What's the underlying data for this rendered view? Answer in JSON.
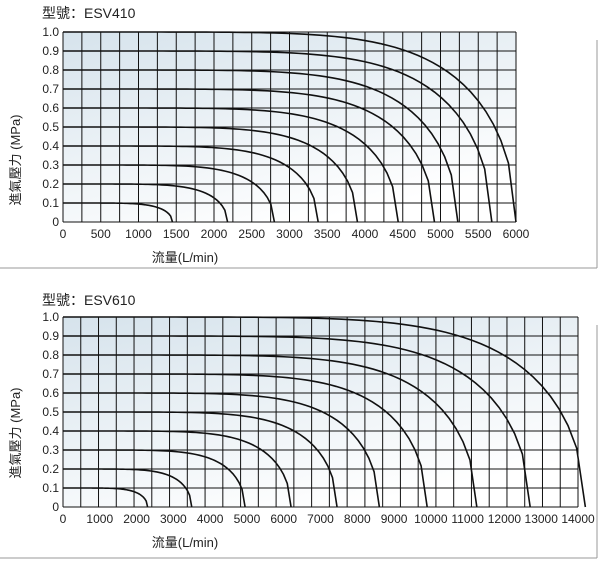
{
  "chart_data": [
    {
      "type": "line",
      "title": "型號：ESV410",
      "xlabel": "流量(L/min)",
      "ylabel": "進氣壓力 (MPa)",
      "xlim": [
        0,
        6000
      ],
      "ylim": [
        0,
        1.0
      ],
      "x_ticks": [
        "0",
        "500",
        "1000",
        "1500",
        "2000",
        "2500",
        "3000",
        "3500",
        "4000",
        "4500",
        "5000",
        "5500",
        "6000"
      ],
      "y_ticks": [
        "0",
        "0.1",
        "0.2",
        "0.3",
        "0.4",
        "0.5",
        "0.6",
        "0.7",
        "0.8",
        "0.9",
        "1.0"
      ],
      "grid": true,
      "series": [
        {
          "pressure": 0.1,
          "max_flow": 1450
        },
        {
          "pressure": 0.2,
          "max_flow": 2180
        },
        {
          "pressure": 0.3,
          "max_flow": 2800
        },
        {
          "pressure": 0.4,
          "max_flow": 3380
        },
        {
          "pressure": 0.5,
          "max_flow": 3900
        },
        {
          "pressure": 0.6,
          "max_flow": 4440
        },
        {
          "pressure": 0.7,
          "max_flow": 4920
        },
        {
          "pressure": 0.8,
          "max_flow": 5230
        },
        {
          "pressure": 0.9,
          "max_flow": 5680
        },
        {
          "pressure": 1.0,
          "max_flow": 6000
        }
      ]
    },
    {
      "type": "line",
      "title": "型號：ESV610",
      "xlabel": "流量(L/min)",
      "ylabel": "進氣壓力 (MPa)",
      "xlim": [
        0,
        14000
      ],
      "ylim": [
        0,
        1.0
      ],
      "x_ticks": [
        "0",
        "1000",
        "2000",
        "3000",
        "4000",
        "5000",
        "6000",
        "7000",
        "8000",
        "9000",
        "10000",
        "11000",
        "12000",
        "13000",
        "14000"
      ],
      "y_ticks": [
        "0",
        "0.1",
        "0.2",
        "0.3",
        "0.4",
        "0.5",
        "0.6",
        "0.7",
        "0.8",
        "0.9",
        "1.0"
      ],
      "grid": true,
      "series": [
        {
          "pressure": 0.1,
          "max_flow": 2300
        },
        {
          "pressure": 0.2,
          "max_flow": 3500
        },
        {
          "pressure": 0.3,
          "max_flow": 4950
        },
        {
          "pressure": 0.4,
          "max_flow": 6200
        },
        {
          "pressure": 0.5,
          "max_flow": 7450
        },
        {
          "pressure": 0.6,
          "max_flow": 8600
        },
        {
          "pressure": 0.7,
          "max_flow": 9900
        },
        {
          "pressure": 0.8,
          "max_flow": 11250
        },
        {
          "pressure": 0.9,
          "max_flow": 12700
        },
        {
          "pressure": 1.0,
          "max_flow": 14200
        }
      ]
    }
  ],
  "colors": {
    "grid": "#111111",
    "curve": "#111111",
    "bg_top": "#dbe6ee",
    "bg_bottom": "#ffffff",
    "panel_border": "#9a9a9a"
  }
}
